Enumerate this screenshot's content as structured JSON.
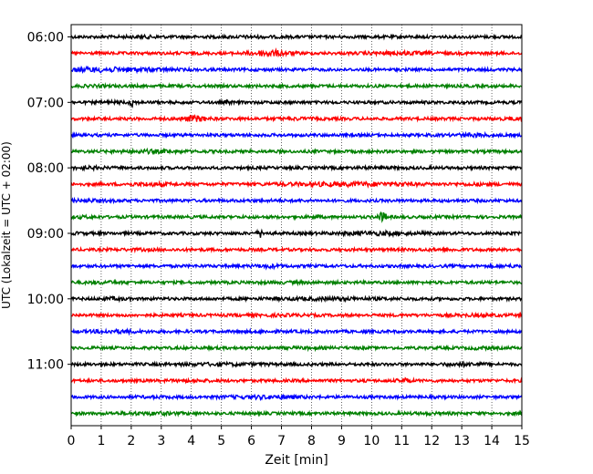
{
  "chart_data": {
    "type": "line",
    "title": "",
    "xlabel": "Zeit  [min]",
    "ylabel": "UTC (Lokalzeit = UTC + 02:00)",
    "xlim": [
      0,
      15
    ],
    "x_ticks": [
      0,
      1,
      2,
      3,
      4,
      5,
      6,
      7,
      8,
      9,
      10,
      11,
      12,
      13,
      14,
      15
    ],
    "x_tick_labels": [
      "0",
      "1",
      "2",
      "3",
      "4",
      "5",
      "6",
      "7",
      "8",
      "9",
      "10",
      "11",
      "12",
      "13",
      "14",
      "15"
    ],
    "y_tick_labels": [
      "06:00",
      "07:00",
      "08:00",
      "09:00",
      "10:00",
      "11:00"
    ],
    "grid": "vertical dotted",
    "trace_interval_minutes": 15,
    "color_cycle": [
      "#000000",
      "#ff0000",
      "#0000ff",
      "#008000"
    ],
    "series": [
      {
        "start": "06:00",
        "events": [
          {
            "t": 2.4,
            "amp": 1.3,
            "w": 0.6
          },
          {
            "t": 6.0,
            "amp": 1.2,
            "w": 0.8
          }
        ]
      },
      {
        "start": "06:15",
        "events": [
          {
            "t": 6.6,
            "amp": 2.5,
            "w": 0.6
          },
          {
            "t": 11.0,
            "amp": 1.5,
            "w": 1.0
          }
        ]
      },
      {
        "start": "06:30",
        "events": [
          {
            "t": 0.9,
            "amp": 2.0,
            "w": 1.2
          },
          {
            "t": 2.6,
            "amp": 1.4,
            "w": 0.8
          }
        ]
      },
      {
        "start": "06:45",
        "events": [
          {
            "t": 0.8,
            "amp": 1.2,
            "w": 0.6
          }
        ]
      },
      {
        "start": "07:00",
        "events": [
          {
            "t": 2.05,
            "amp": 3.5,
            "w": 0.08
          },
          {
            "t": 5.2,
            "amp": 1.8,
            "w": 0.1
          },
          {
            "t": 1.5,
            "amp": 1.3,
            "w": 0.5
          }
        ]
      },
      {
        "start": "07:15",
        "events": [
          {
            "t": 4.1,
            "amp": 2.5,
            "w": 0.4
          },
          {
            "t": 7.6,
            "amp": 1.3,
            "w": 0.6
          },
          {
            "t": 14.8,
            "amp": 1.4,
            "w": 0.4
          }
        ]
      },
      {
        "start": "07:30",
        "events": [
          {
            "t": 13.4,
            "amp": 1.6,
            "w": 0.6
          }
        ]
      },
      {
        "start": "07:45",
        "events": [
          {
            "t": 2.6,
            "amp": 1.6,
            "w": 1.0
          }
        ]
      },
      {
        "start": "08:00",
        "events": [
          {
            "t": 0.6,
            "amp": 1.4,
            "w": 0.6
          },
          {
            "t": 10.2,
            "amp": 1.2,
            "w": 0.8
          }
        ]
      },
      {
        "start": "08:15",
        "events": [
          {
            "t": 2.6,
            "amp": 1.6,
            "w": 0.7
          },
          {
            "t": 9.3,
            "amp": 1.8,
            "w": 2.2
          },
          {
            "t": 13.6,
            "amp": 1.3,
            "w": 0.8
          }
        ]
      },
      {
        "start": "08:30",
        "events": [
          {
            "t": 0.6,
            "amp": 1.4,
            "w": 0.7
          },
          {
            "t": 6.5,
            "amp": 1.1,
            "w": 1.0
          }
        ]
      },
      {
        "start": "08:45",
        "events": [
          {
            "t": 10.35,
            "amp": 3.5,
            "w": 0.15
          },
          {
            "t": 8.2,
            "amp": 1.6,
            "w": 0.1
          },
          {
            "t": 0.4,
            "amp": 1.3,
            "w": 0.4
          }
        ]
      },
      {
        "start": "09:00",
        "events": [
          {
            "t": 6.3,
            "amp": 3.2,
            "w": 0.1
          },
          {
            "t": 10.2,
            "amp": 1.7,
            "w": 1.2
          },
          {
            "t": 0.2,
            "amp": 1.2,
            "w": 0.3
          }
        ]
      },
      {
        "start": "09:15",
        "events": [
          {
            "t": 2.2,
            "amp": 1.2,
            "w": 0.6
          },
          {
            "t": 12.5,
            "amp": 1.2,
            "w": 0.8
          }
        ]
      },
      {
        "start": "09:30",
        "events": [
          {
            "t": 6.6,
            "amp": 1.6,
            "w": 0.5
          },
          {
            "t": 14.6,
            "amp": 1.3,
            "w": 0.4
          }
        ]
      },
      {
        "start": "09:45",
        "events": [
          {
            "t": 1.2,
            "amp": 1.3,
            "w": 0.7
          },
          {
            "t": 7.4,
            "amp": 1.2,
            "w": 1.0
          }
        ]
      },
      {
        "start": "10:00",
        "events": [
          {
            "t": 1.4,
            "amp": 1.5,
            "w": 0.4
          },
          {
            "t": 8.6,
            "amp": 1.4,
            "w": 2.0
          }
        ]
      },
      {
        "start": "10:15",
        "events": [
          {
            "t": 7.0,
            "amp": 1.2,
            "w": 1.2
          },
          {
            "t": 13.6,
            "amp": 1.3,
            "w": 0.8
          }
        ]
      },
      {
        "start": "10:30",
        "events": [
          {
            "t": 1.5,
            "amp": 1.6,
            "w": 0.8
          },
          {
            "t": 6.2,
            "amp": 1.2,
            "w": 0.8
          }
        ]
      },
      {
        "start": "10:45",
        "events": [
          {
            "t": 13.6,
            "amp": 1.5,
            "w": 0.3
          },
          {
            "t": 7.8,
            "amp": 1.2,
            "w": 0.6
          }
        ]
      },
      {
        "start": "11:00",
        "events": [
          {
            "t": 5.0,
            "amp": 1.4,
            "w": 1.5
          },
          {
            "t": 13.1,
            "amp": 1.7,
            "w": 0.6
          }
        ]
      },
      {
        "start": "11:15",
        "events": [
          {
            "t": 11.1,
            "amp": 2.0,
            "w": 0.2
          },
          {
            "t": 4.0,
            "amp": 1.2,
            "w": 0.8
          }
        ]
      },
      {
        "start": "11:30",
        "events": [
          {
            "t": 6.5,
            "amp": 1.6,
            "w": 1.2
          },
          {
            "t": 2.8,
            "amp": 1.2,
            "w": 0.6
          }
        ]
      },
      {
        "start": "11:45",
        "events": [
          {
            "t": 2.6,
            "amp": 1.5,
            "w": 1.0
          },
          {
            "t": 12.0,
            "amp": 1.2,
            "w": 0.6
          }
        ]
      }
    ]
  }
}
